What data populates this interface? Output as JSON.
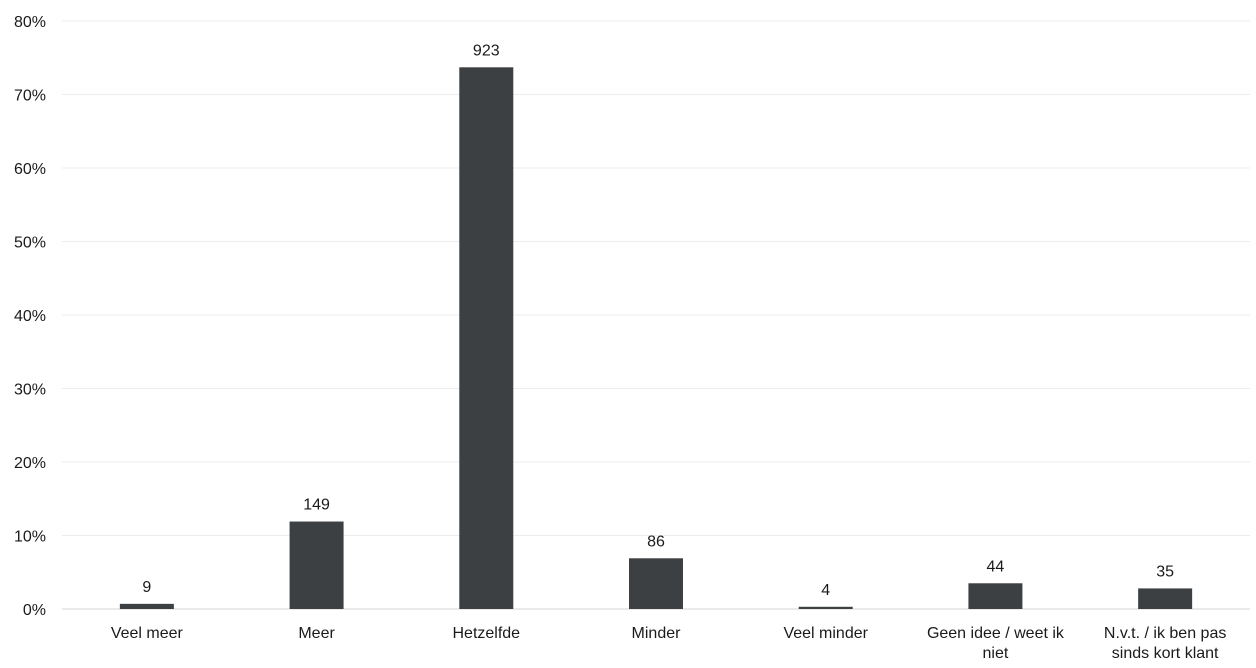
{
  "chart_data": {
    "type": "bar",
    "title": "",
    "xlabel": "",
    "ylabel": "",
    "categories": [
      [
        "Veel meer"
      ],
      [
        "Meer"
      ],
      [
        "Hetzelfde"
      ],
      [
        "Minder"
      ],
      [
        "Veel minder"
      ],
      [
        "Geen idee / weet ik",
        "niet"
      ],
      [
        "N.v.t. / ik ben pas",
        "sinds kort klant"
      ]
    ],
    "values": [
      0.7,
      11.9,
      73.7,
      6.9,
      0.3,
      3.5,
      2.8
    ],
    "data_labels": [
      "9",
      "149",
      "923",
      "86",
      "4",
      "44",
      "35"
    ],
    "ylim": [
      0,
      80
    ],
    "yticks": [
      0,
      10,
      20,
      30,
      40,
      50,
      60,
      70,
      80
    ],
    "ytick_labels": [
      "0%",
      "10%",
      "20%",
      "30%",
      "40%",
      "50%",
      "60%",
      "70%",
      "80%"
    ],
    "grid": true,
    "legend": "none",
    "bar_color": "#3c4043"
  }
}
